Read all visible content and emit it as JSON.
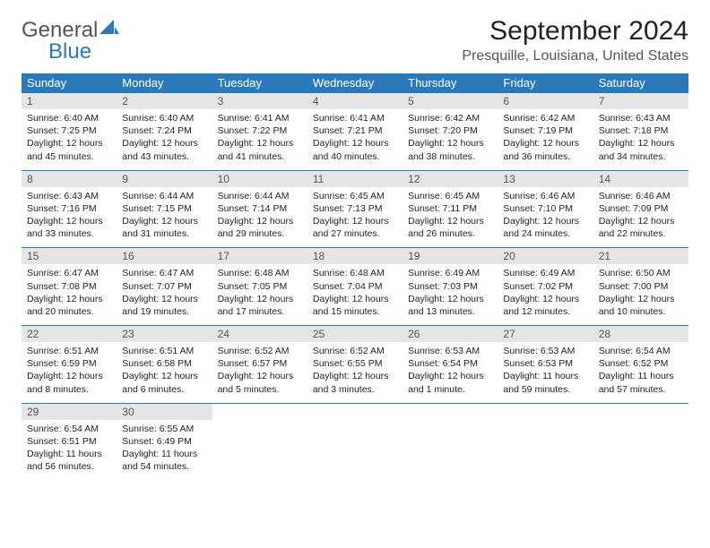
{
  "logo": {
    "part1": "General",
    "part2": "Blue"
  },
  "title": "September 2024",
  "location": "Presquille, Louisiana, United States",
  "colors": {
    "header_bg": "#2a7ab9",
    "header_text": "#ffffff",
    "daynum_bg": "#e5e5e5",
    "border": "#2a7ab9",
    "text": "#222222",
    "logo_gray": "#555555",
    "logo_blue": "#2a7ab9"
  },
  "typography": {
    "title_fontsize": 30,
    "location_fontsize": 16,
    "dayhead_fontsize": 13,
    "daynum_fontsize": 12,
    "body_fontsize": 10.5
  },
  "day_headers": [
    "Sunday",
    "Monday",
    "Tuesday",
    "Wednesday",
    "Thursday",
    "Friday",
    "Saturday"
  ],
  "weeks": [
    [
      {
        "n": "1",
        "sunrise": "Sunrise: 6:40 AM",
        "sunset": "Sunset: 7:25 PM",
        "d1": "Daylight: 12 hours",
        "d2": "and 45 minutes."
      },
      {
        "n": "2",
        "sunrise": "Sunrise: 6:40 AM",
        "sunset": "Sunset: 7:24 PM",
        "d1": "Daylight: 12 hours",
        "d2": "and 43 minutes."
      },
      {
        "n": "3",
        "sunrise": "Sunrise: 6:41 AM",
        "sunset": "Sunset: 7:22 PM",
        "d1": "Daylight: 12 hours",
        "d2": "and 41 minutes."
      },
      {
        "n": "4",
        "sunrise": "Sunrise: 6:41 AM",
        "sunset": "Sunset: 7:21 PM",
        "d1": "Daylight: 12 hours",
        "d2": "and 40 minutes."
      },
      {
        "n": "5",
        "sunrise": "Sunrise: 6:42 AM",
        "sunset": "Sunset: 7:20 PM",
        "d1": "Daylight: 12 hours",
        "d2": "and 38 minutes."
      },
      {
        "n": "6",
        "sunrise": "Sunrise: 6:42 AM",
        "sunset": "Sunset: 7:19 PM",
        "d1": "Daylight: 12 hours",
        "d2": "and 36 minutes."
      },
      {
        "n": "7",
        "sunrise": "Sunrise: 6:43 AM",
        "sunset": "Sunset: 7:18 PM",
        "d1": "Daylight: 12 hours",
        "d2": "and 34 minutes."
      }
    ],
    [
      {
        "n": "8",
        "sunrise": "Sunrise: 6:43 AM",
        "sunset": "Sunset: 7:16 PM",
        "d1": "Daylight: 12 hours",
        "d2": "and 33 minutes."
      },
      {
        "n": "9",
        "sunrise": "Sunrise: 6:44 AM",
        "sunset": "Sunset: 7:15 PM",
        "d1": "Daylight: 12 hours",
        "d2": "and 31 minutes."
      },
      {
        "n": "10",
        "sunrise": "Sunrise: 6:44 AM",
        "sunset": "Sunset: 7:14 PM",
        "d1": "Daylight: 12 hours",
        "d2": "and 29 minutes."
      },
      {
        "n": "11",
        "sunrise": "Sunrise: 6:45 AM",
        "sunset": "Sunset: 7:13 PM",
        "d1": "Daylight: 12 hours",
        "d2": "and 27 minutes."
      },
      {
        "n": "12",
        "sunrise": "Sunrise: 6:45 AM",
        "sunset": "Sunset: 7:11 PM",
        "d1": "Daylight: 12 hours",
        "d2": "and 26 minutes."
      },
      {
        "n": "13",
        "sunrise": "Sunrise: 6:46 AM",
        "sunset": "Sunset: 7:10 PM",
        "d1": "Daylight: 12 hours",
        "d2": "and 24 minutes."
      },
      {
        "n": "14",
        "sunrise": "Sunrise: 6:46 AM",
        "sunset": "Sunset: 7:09 PM",
        "d1": "Daylight: 12 hours",
        "d2": "and 22 minutes."
      }
    ],
    [
      {
        "n": "15",
        "sunrise": "Sunrise: 6:47 AM",
        "sunset": "Sunset: 7:08 PM",
        "d1": "Daylight: 12 hours",
        "d2": "and 20 minutes."
      },
      {
        "n": "16",
        "sunrise": "Sunrise: 6:47 AM",
        "sunset": "Sunset: 7:07 PM",
        "d1": "Daylight: 12 hours",
        "d2": "and 19 minutes."
      },
      {
        "n": "17",
        "sunrise": "Sunrise: 6:48 AM",
        "sunset": "Sunset: 7:05 PM",
        "d1": "Daylight: 12 hours",
        "d2": "and 17 minutes."
      },
      {
        "n": "18",
        "sunrise": "Sunrise: 6:48 AM",
        "sunset": "Sunset: 7:04 PM",
        "d1": "Daylight: 12 hours",
        "d2": "and 15 minutes."
      },
      {
        "n": "19",
        "sunrise": "Sunrise: 6:49 AM",
        "sunset": "Sunset: 7:03 PM",
        "d1": "Daylight: 12 hours",
        "d2": "and 13 minutes."
      },
      {
        "n": "20",
        "sunrise": "Sunrise: 6:49 AM",
        "sunset": "Sunset: 7:02 PM",
        "d1": "Daylight: 12 hours",
        "d2": "and 12 minutes."
      },
      {
        "n": "21",
        "sunrise": "Sunrise: 6:50 AM",
        "sunset": "Sunset: 7:00 PM",
        "d1": "Daylight: 12 hours",
        "d2": "and 10 minutes."
      }
    ],
    [
      {
        "n": "22",
        "sunrise": "Sunrise: 6:51 AM",
        "sunset": "Sunset: 6:59 PM",
        "d1": "Daylight: 12 hours",
        "d2": "and 8 minutes."
      },
      {
        "n": "23",
        "sunrise": "Sunrise: 6:51 AM",
        "sunset": "Sunset: 6:58 PM",
        "d1": "Daylight: 12 hours",
        "d2": "and 6 minutes."
      },
      {
        "n": "24",
        "sunrise": "Sunrise: 6:52 AM",
        "sunset": "Sunset: 6:57 PM",
        "d1": "Daylight: 12 hours",
        "d2": "and 5 minutes."
      },
      {
        "n": "25",
        "sunrise": "Sunrise: 6:52 AM",
        "sunset": "Sunset: 6:55 PM",
        "d1": "Daylight: 12 hours",
        "d2": "and 3 minutes."
      },
      {
        "n": "26",
        "sunrise": "Sunrise: 6:53 AM",
        "sunset": "Sunset: 6:54 PM",
        "d1": "Daylight: 12 hours",
        "d2": "and 1 minute."
      },
      {
        "n": "27",
        "sunrise": "Sunrise: 6:53 AM",
        "sunset": "Sunset: 6:53 PM",
        "d1": "Daylight: 11 hours",
        "d2": "and 59 minutes."
      },
      {
        "n": "28",
        "sunrise": "Sunrise: 6:54 AM",
        "sunset": "Sunset: 6:52 PM",
        "d1": "Daylight: 11 hours",
        "d2": "and 57 minutes."
      }
    ],
    [
      {
        "n": "29",
        "sunrise": "Sunrise: 6:54 AM",
        "sunset": "Sunset: 6:51 PM",
        "d1": "Daylight: 11 hours",
        "d2": "and 56 minutes."
      },
      {
        "n": "30",
        "sunrise": "Sunrise: 6:55 AM",
        "sunset": "Sunset: 6:49 PM",
        "d1": "Daylight: 11 hours",
        "d2": "and 54 minutes."
      },
      null,
      null,
      null,
      null,
      null
    ]
  ]
}
